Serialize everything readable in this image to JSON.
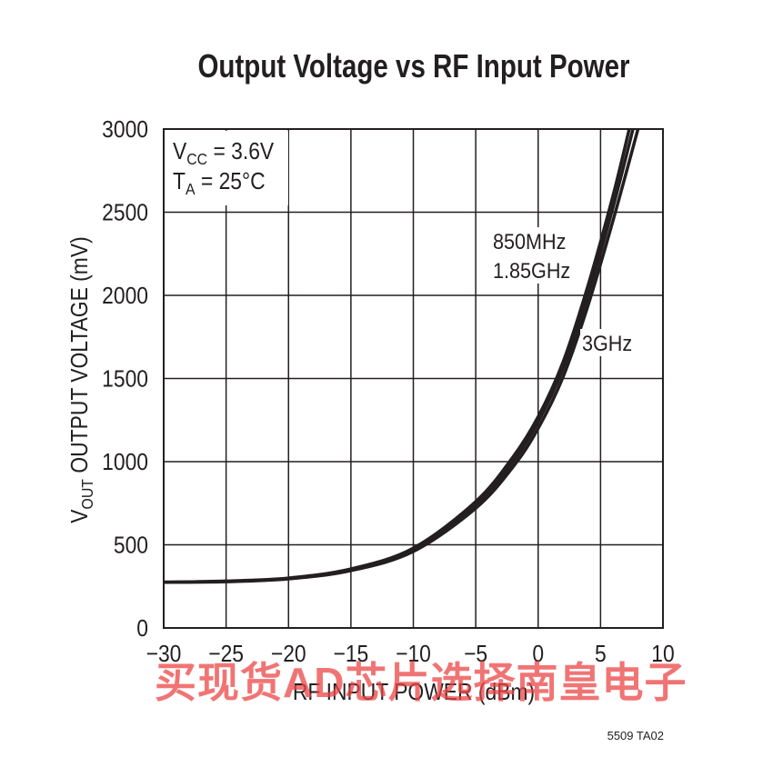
{
  "chart_data": {
    "type": "line",
    "title": "Output Voltage vs RF Input Power",
    "xlabel": "RF INPUT POWER (dBm)",
    "ylabel_main": "V",
    "ylabel_sub": "OUT",
    "ylabel_rest": " OUTPUT VOLTAGE (mV)",
    "xlim": [
      -30,
      10
    ],
    "ylim": [
      0,
      3000
    ],
    "xticks": [
      -30,
      -25,
      -20,
      -15,
      -10,
      -5,
      0,
      5,
      10
    ],
    "xtick_labels": [
      "−30",
      "−25",
      "−20",
      "−15",
      "−10",
      "−5",
      "0",
      "5",
      "10"
    ],
    "yticks": [
      0,
      500,
      1000,
      1500,
      2000,
      2500,
      3000
    ],
    "ytick_labels": [
      "0",
      "500",
      "1000",
      "1500",
      "2000",
      "2500",
      "3000"
    ],
    "grid": true,
    "conditions": {
      "vcc_main": "V",
      "vcc_sub": "CC",
      "vcc_rest": " = 3.6V",
      "ta_main": "T",
      "ta_sub": "A",
      "ta_rest": " = 25°C"
    },
    "annotations": {
      "label_850": "850MHz",
      "label_185": "1.85GHz",
      "label_3g": "3GHz"
    },
    "series": [
      {
        "name": "850MHz",
        "x": [
          -30,
          -25,
          -20,
          -15,
          -10,
          -5,
          -2,
          0,
          2,
          4,
          6,
          7.3
        ],
        "values": [
          275,
          282,
          300,
          355,
          480,
          760,
          1030,
          1270,
          1600,
          2060,
          2600,
          3000
        ]
      },
      {
        "name": "1.85GHz",
        "x": [
          -30,
          -25,
          -20,
          -15,
          -10,
          -5,
          -2,
          0,
          2,
          4,
          6,
          7.6
        ],
        "values": [
          275,
          280,
          298,
          350,
          470,
          740,
          1000,
          1240,
          1560,
          2000,
          2530,
          3000
        ]
      },
      {
        "name": "3GHz",
        "x": [
          -30,
          -25,
          -20,
          -15,
          -10,
          -5,
          -2,
          0,
          2,
          4,
          6,
          8
        ],
        "values": [
          275,
          278,
          295,
          345,
          460,
          720,
          970,
          1200,
          1510,
          1940,
          2450,
          3000
        ]
      }
    ]
  },
  "figure_code": "5509 TA02",
  "watermark": "买现货AD芯片选择南皇电子"
}
